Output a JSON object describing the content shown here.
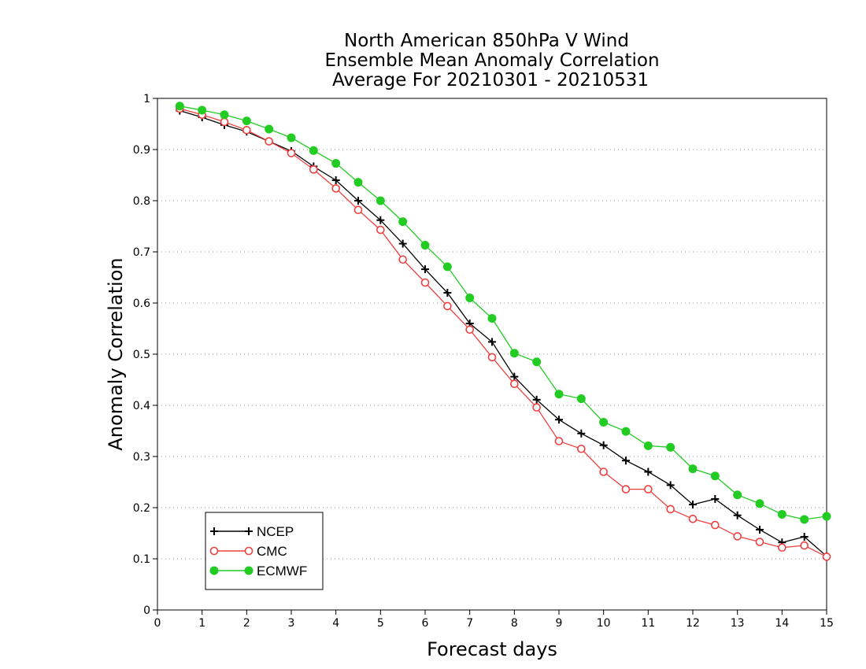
{
  "chart_data": {
    "type": "line",
    "title": [
      "North American 850hPa V Wind",
      "Ensemble Mean Anomaly Correlation",
      "Average For 20210301 - 20210531"
    ],
    "xlabel": "Forecast days",
    "ylabel": "Anomaly Correlation",
    "xlim": [
      0,
      15
    ],
    "ylim": [
      0,
      1
    ],
    "xticks": [
      "0",
      "1",
      "2",
      "3",
      "4",
      "5",
      "6",
      "7",
      "8",
      "9",
      "10",
      "11",
      "12",
      "13",
      "14",
      "15"
    ],
    "yticks": [
      "0",
      "0.1",
      "0.2",
      "0.3",
      "0.4",
      "0.5",
      "0.6",
      "0.7",
      "0.8",
      "0.9",
      "1"
    ],
    "grid": "horizontal dotted",
    "legend_position": "bottom-left",
    "x": [
      0.5,
      1,
      1.5,
      2,
      2.5,
      3,
      3.5,
      4,
      4.5,
      5,
      5.5,
      6,
      6.5,
      7,
      7.5,
      8,
      8.5,
      9,
      9.5,
      10,
      10.5,
      11,
      11.5,
      12,
      12.5,
      13,
      13.5,
      14,
      14.5,
      15
    ],
    "series": [
      {
        "name": "NCEP",
        "color": "#000000",
        "marker": "plus",
        "values": [
          0.976,
          0.963,
          0.948,
          0.935,
          0.916,
          0.897,
          0.867,
          0.84,
          0.8,
          0.762,
          0.716,
          0.666,
          0.62,
          0.56,
          0.524,
          0.456,
          0.411,
          0.372,
          0.345,
          0.322,
          0.292,
          0.27,
          0.244,
          0.206,
          0.217,
          0.185,
          0.157,
          0.132,
          0.143,
          0.105
        ]
      },
      {
        "name": "CMC",
        "color": "#ee4040",
        "marker": "open-circle",
        "values": [
          0.98,
          0.968,
          0.954,
          0.938,
          0.916,
          0.893,
          0.861,
          0.824,
          0.782,
          0.743,
          0.685,
          0.64,
          0.594,
          0.548,
          0.494,
          0.442,
          0.396,
          0.33,
          0.315,
          0.27,
          0.236,
          0.236,
          0.197,
          0.178,
          0.166,
          0.144,
          0.133,
          0.122,
          0.126,
          0.104
        ]
      },
      {
        "name": "ECMWF",
        "color": "#22cc22",
        "marker": "filled-circle",
        "values": [
          0.985,
          0.977,
          0.968,
          0.956,
          0.94,
          0.923,
          0.898,
          0.873,
          0.836,
          0.8,
          0.759,
          0.713,
          0.671,
          0.61,
          0.57,
          0.502,
          0.485,
          0.422,
          0.413,
          0.367,
          0.349,
          0.321,
          0.318,
          0.276,
          0.262,
          0.225,
          0.208,
          0.187,
          0.177,
          0.183
        ]
      }
    ]
  }
}
